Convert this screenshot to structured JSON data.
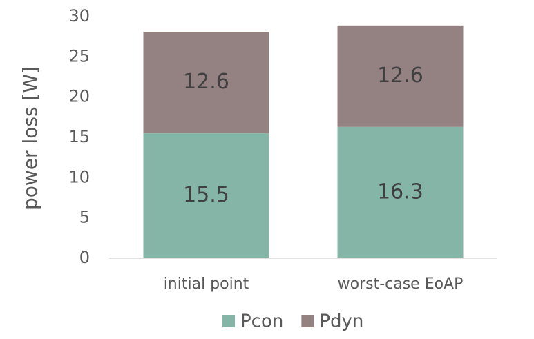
{
  "chart_data": {
    "type": "stacked-bar",
    "y_label": "power loss [W]",
    "categories": [
      "initial point",
      "worst-case EoAP"
    ],
    "series": [
      {
        "name": "Pcon",
        "color": "#84b5a6",
        "values": [
          15.5,
          16.3
        ]
      },
      {
        "name": "Pdyn",
        "color": "#948282",
        "values": [
          12.6,
          12.6
        ]
      }
    ],
    "ylim": [
      0,
      30
    ],
    "yticks": [
      0,
      5,
      10,
      15,
      20,
      25,
      30
    ],
    "legend": "bottom"
  }
}
